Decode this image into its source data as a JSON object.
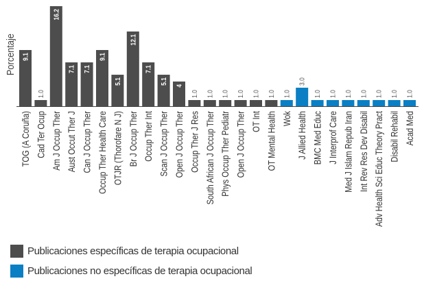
{
  "chart_data": {
    "type": "bar",
    "ylabel": "Porcentaje",
    "ylim": [
      0,
      16.2
    ],
    "grid": false,
    "legend_placement": "bottom-left",
    "categories": [
      "TOG (A Coruña)",
      "Cad Ter Ocup",
      "Am J Occup Ther",
      "Aust Occut Ther J",
      "Can J Occup Ther",
      "Occup Ther Health Care",
      "OTJR (Thorofare N J)",
      "Br J Occup Ther",
      "Occup Ther Int",
      "Scan J Occup Ther",
      "Open J Occup Ther",
      "Occup Ther J Res",
      "South African J Occup Ther",
      "Phys Occup Ther Pediatr",
      "Open J Occup Ther",
      "OT Int",
      "OT Mental Health",
      "Wok",
      "J Allied Health",
      "BMC Med Educ",
      "J Interprof Care",
      "Med J Islam Repub Iran",
      "Int Rev Res Dev Disabil",
      "Adv Health Sci Educ Theory Pract",
      "Disabil Rehabil",
      "Acad Med"
    ],
    "values": [
      9.1,
      1.0,
      16.2,
      7.1,
      7.1,
      9.1,
      5.1,
      12.1,
      7.1,
      5.1,
      4,
      1.0,
      1.0,
      1.0,
      1.0,
      1.0,
      1.0,
      1.0,
      3.0,
      1.0,
      1.0,
      1.0,
      1.0,
      1.0,
      1.0,
      1.0
    ],
    "data_labels": [
      "9.1",
      "1.0",
      "16.2",
      "7.1",
      "7.1",
      "9.1",
      "5.1",
      "12.1",
      "7.1",
      "5.1",
      "4",
      "1.0",
      "1.0",
      "1.0",
      "1.0",
      "1.0",
      "1.0",
      "1.0",
      "3.0",
      "1.0",
      "1.0",
      "1.0",
      "1.0",
      "1.0",
      "1.0",
      "1.0"
    ],
    "groups": [
      0,
      0,
      0,
      0,
      0,
      0,
      0,
      0,
      0,
      0,
      0,
      0,
      0,
      0,
      0,
      0,
      0,
      1,
      1,
      1,
      1,
      1,
      1,
      1,
      1,
      1
    ],
    "legend": [
      {
        "label": "Publicaciones específicas de terapia ocupacional",
        "color": "#4d4d4d"
      },
      {
        "label": "Publicaciones no específicas de terapia ocupacional",
        "color": "#0a7fc4"
      }
    ]
  }
}
